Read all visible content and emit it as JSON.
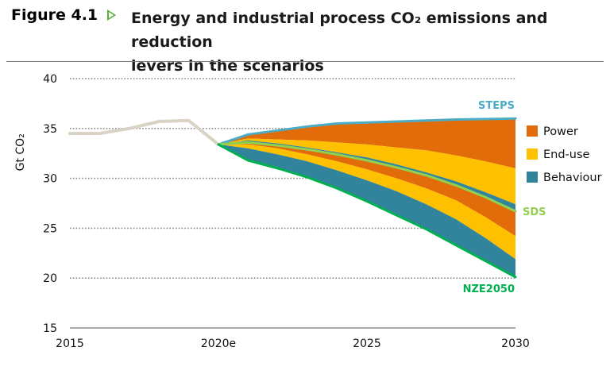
{
  "header": {
    "figure_number": "Figure 4.1",
    "title_line1": "Energy and industrial process CO₂ emissions and reduction",
    "title_line2": "levers in the scenarios"
  },
  "colors": {
    "power": "#e36c0a",
    "enduse": "#ffc000",
    "behaviour": "#31849b",
    "steps": "#4bacc6",
    "sds": "#92d050",
    "nze": "#00b050",
    "history": "#d9d3c5",
    "steps_label": "#4bacc6",
    "sds_label": "#92d050",
    "nze_label": "#00b050"
  },
  "chart_data": {
    "type": "area",
    "ylabel": "Gt CO₂",
    "ylim": [
      15,
      40
    ],
    "yticks": [
      15,
      20,
      25,
      30,
      35,
      40
    ],
    "xlim": [
      2015,
      2030
    ],
    "x_ticks": [
      {
        "value": 2015,
        "label": "2015"
      },
      {
        "value": 2020,
        "label": "2020e"
      },
      {
        "value": 2025,
        "label": "2025"
      },
      {
        "value": 2030,
        "label": "2030"
      }
    ],
    "grid": true,
    "legend_position": "right",
    "history": {
      "x": [
        2015,
        2016,
        2017,
        2018,
        2019,
        2020
      ],
      "y": [
        34.5,
        34.5,
        35.0,
        35.7,
        35.8,
        33.4
      ]
    },
    "x": [
      2020,
      2021,
      2022,
      2023,
      2024,
      2025,
      2026,
      2027,
      2028,
      2029,
      2030
    ],
    "lines": {
      "STEPS": [
        33.4,
        34.4,
        34.8,
        35.2,
        35.5,
        35.6,
        35.7,
        35.8,
        35.9,
        35.95,
        36.0
      ],
      "SDS": [
        33.4,
        33.6,
        33.3,
        32.9,
        32.4,
        31.8,
        31.1,
        30.3,
        29.3,
        28.1,
        26.7
      ],
      "NZE2050": [
        33.4,
        31.8,
        31.0,
        30.1,
        29.0,
        27.7,
        26.3,
        24.9,
        23.3,
        21.7,
        20.1
      ]
    },
    "bands_boundaries": {
      "power_bottom": [
        33.4,
        34.0,
        33.9,
        33.8,
        33.6,
        33.4,
        33.1,
        32.8,
        32.3,
        31.7,
        31.0
      ],
      "enduse_bottom": [
        33.4,
        33.8,
        33.5,
        33.1,
        32.6,
        32.1,
        31.4,
        30.6,
        29.7,
        28.6,
        27.4
      ],
      "sds_lower_power": [
        33.4,
        33.4,
        33.0,
        32.4,
        31.7,
        30.9,
        30.0,
        29.0,
        27.8,
        26.1,
        24.2
      ],
      "sds_lower_enduse": [
        33.4,
        33.0,
        32.4,
        31.7,
        30.8,
        29.8,
        28.7,
        27.4,
        25.9,
        24.0,
        21.9
      ]
    },
    "legend": [
      {
        "key": "power",
        "label": "Power"
      },
      {
        "key": "enduse",
        "label": "End-use"
      },
      {
        "key": "behaviour",
        "label": "Behaviour"
      }
    ],
    "scenario_labels": {
      "STEPS": "STEPS",
      "SDS": "SDS",
      "NZE2050": "NZE2050"
    }
  }
}
